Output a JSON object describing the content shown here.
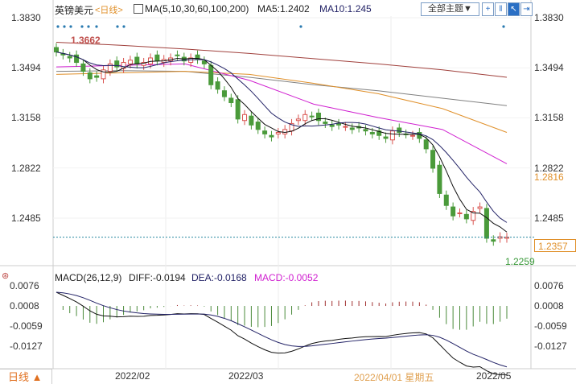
{
  "header": {
    "symbol": "英镑美元",
    "period_tag": "<日线>",
    "ma_label": "MA(5,10,30,60,100,200)",
    "ma5": "MA5:1.2402",
    "ma10": "MA10:1.245",
    "theme_button": "全部主题▼",
    "tool_icons": [
      "crosshair-icon",
      "split-icon",
      "cursor-icon",
      "export-icon"
    ]
  },
  "price_axis": {
    "ticks": [
      "1.3830",
      "1.3494",
      "1.3158",
      "1.2822",
      "1.2485"
    ],
    "values": [
      1.383,
      1.3494,
      1.3158,
      1.2822,
      1.2485
    ],
    "last_price": "1.2357",
    "ma_tag": "1.2816",
    "high_label": "1.3662",
    "low_label": "1.2259"
  },
  "candles": {
    "closes": [
      1.36,
      1.358,
      1.356,
      1.353,
      1.347,
      1.342,
      1.343,
      1.348,
      1.352,
      1.35,
      1.353,
      1.3545,
      1.352,
      1.353,
      1.356,
      1.354,
      1.355,
      1.356,
      1.3575,
      1.354,
      1.356,
      1.355,
      1.352,
      1.338,
      1.335,
      1.33,
      1.326,
      1.315,
      1.318,
      1.311,
      1.308,
      1.305,
      1.303,
      1.306,
      1.308,
      1.312,
      1.315,
      1.318,
      1.317,
      1.314,
      1.312,
      1.31,
      1.311,
      1.31,
      1.308,
      1.309,
      1.307,
      1.305,
      1.304,
      1.302,
      1.307,
      1.306,
      1.305,
      1.304,
      1.302,
      1.295,
      1.282,
      1.265,
      1.257,
      1.25,
      1.252,
      1.248,
      1.253,
      1.256,
      1.235,
      1.233,
      1.236,
      1.2357
    ],
    "up_color": "#d9534f",
    "down_color": "#4a9a3a"
  },
  "ma_lines": [
    {
      "name": "MA200",
      "color": "#a0403c",
      "values": [
        1.3665,
        1.3645,
        1.362,
        1.359,
        1.3555,
        1.352,
        1.348,
        1.343
      ]
    },
    {
      "name": "MA100",
      "color": "#808080",
      "values": [
        1.347,
        1.3475,
        1.347,
        1.343,
        1.338,
        1.334,
        1.329,
        1.324
      ]
    },
    {
      "name": "MA60",
      "color": "#e0902a",
      "values": [
        1.345,
        1.346,
        1.347,
        1.345,
        1.339,
        1.332,
        1.322,
        1.306
      ]
    },
    {
      "name": "MA30",
      "color": "#d020d0",
      "values": [
        1.35,
        1.351,
        1.352,
        1.341,
        1.325,
        1.316,
        1.308,
        1.285
      ]
    }
  ],
  "markers": {
    "color": "#2a7ab0"
  },
  "macd": {
    "label": "MACD(26,12,9)",
    "diff": "DIFF:-0.0194",
    "dea": "DEA:-0.0168",
    "macd": "MACD:-0.0052",
    "ticks": [
      "0.0076",
      "0.0008",
      "-0.0059",
      "-0.0127"
    ],
    "values": [
      0.0076,
      0.0008,
      -0.0059,
      -0.0127
    ]
  },
  "footer": {
    "period_button": "日线 ▲",
    "dates": [
      "2022/02",
      "2022/03",
      "2022/05"
    ],
    "hover_date": "2022/04/01 星期五"
  }
}
